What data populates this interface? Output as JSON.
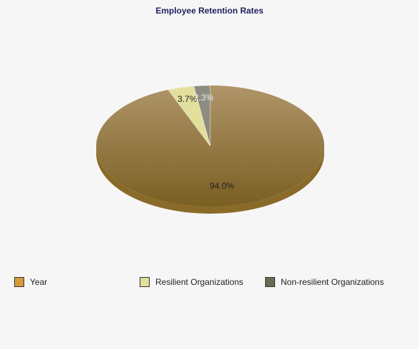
{
  "chart_data": {
    "type": "pie",
    "title": "Employee Retention Rates",
    "series": [
      {
        "name": "Year",
        "value": 94.0,
        "label": "94.0%",
        "color": "#a08452",
        "legend_color": "#d89a3a"
      },
      {
        "name": "Resilient Organizations",
        "value": 3.7,
        "label": "3.7%",
        "color": "#e3df9c",
        "legend_color": "#e3df9c"
      },
      {
        "name": "Non-resilient Organizations",
        "value": 2.3,
        "label": "2.3%",
        "color": "#8e8c80",
        "legend_color": "#6b6b55"
      }
    ],
    "legend_position": "bottom"
  }
}
